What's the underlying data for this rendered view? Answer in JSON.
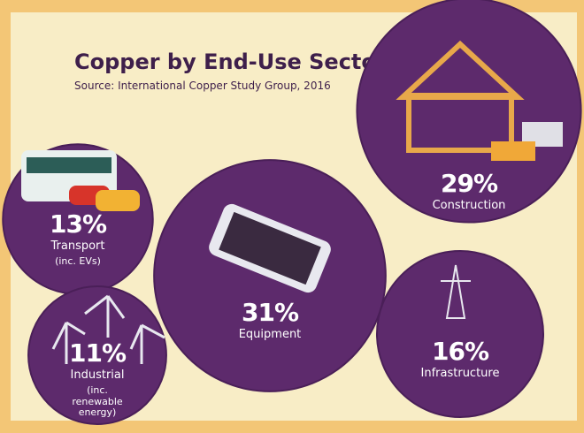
{
  "chart_data": {
    "type": "bubble",
    "title": "Copper by End-Use Sector",
    "subtitle": "Source: International Copper Study Group, 2016",
    "categories": [
      "Transport",
      "Industrial",
      "Equipment",
      "Construction",
      "Infrastructure"
    ],
    "notes": [
      "(inc. EVs)",
      "(inc. renewable energy)",
      null,
      null,
      null
    ],
    "values": [
      13,
      11,
      31,
      29,
      16
    ],
    "value_labels": [
      "13%",
      "11%",
      "31%",
      "29%",
      "16%"
    ],
    "color": "#5d2a6c"
  }
}
